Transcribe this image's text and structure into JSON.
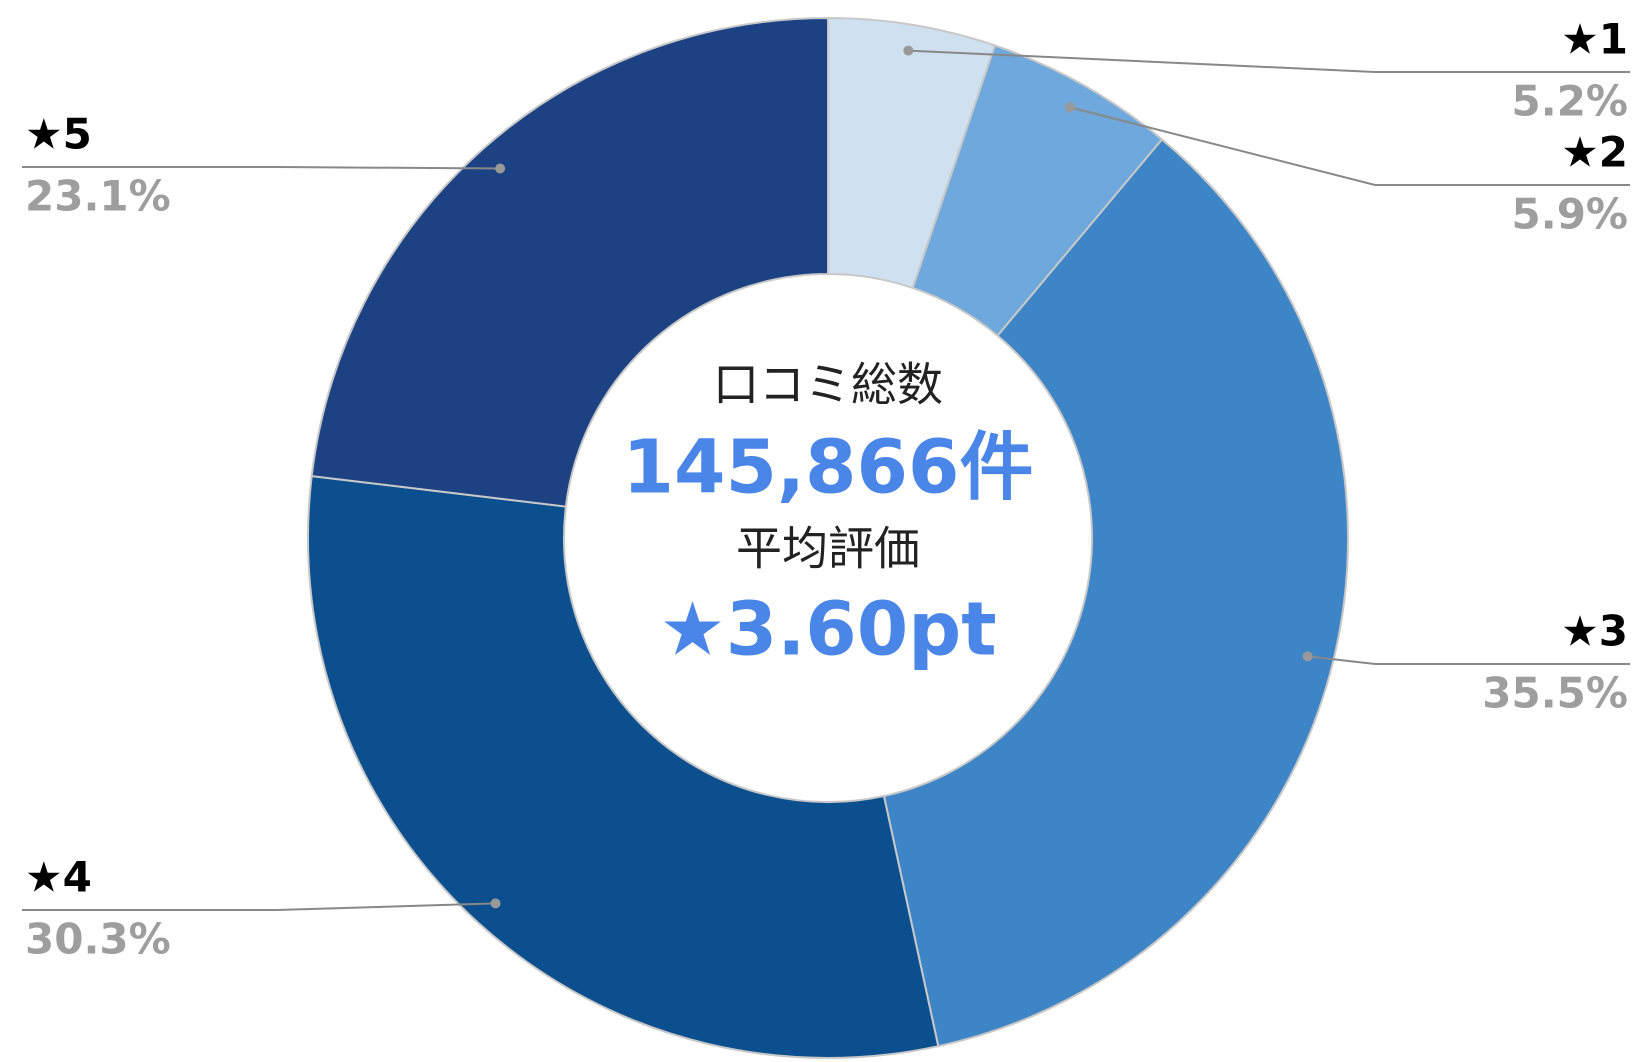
{
  "chart_data": {
    "type": "donut",
    "categories": [
      "★1",
      "★2",
      "★3",
      "★4",
      "★5"
    ],
    "values": [
      5.2,
      5.9,
      35.5,
      30.3,
      23.1
    ],
    "value_labels": [
      "5.2%",
      "5.9%",
      "35.5%",
      "30.3%",
      "23.1%"
    ],
    "colors": [
      "#cfe0f1",
      "#6fa8dc",
      "#3d85c6",
      "#0b4f8f",
      "#1c4283"
    ],
    "annotations": [
      "口コミ総数",
      "145,866件",
      "平均評価",
      "★3.60pt"
    ]
  }
}
